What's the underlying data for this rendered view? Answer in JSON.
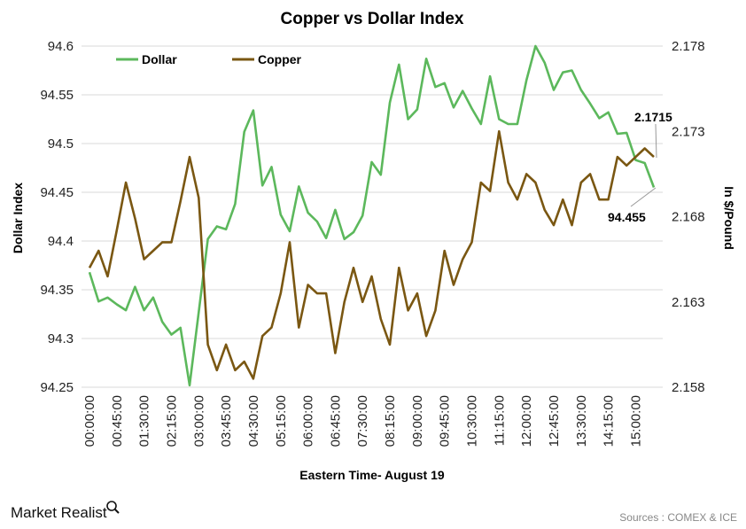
{
  "chart_data": {
    "type": "line",
    "title": "Copper vs Dollar Index",
    "xlabel": "Eastern Time- August 19",
    "ylabel_left": "Dollar Index",
    "ylabel_right": "In $/Pound",
    "ylim_left": [
      94.25,
      94.6
    ],
    "ylim_right": [
      2.158,
      2.178
    ],
    "yticks_left": [
      "94.25",
      "94.3",
      "94.35",
      "94.4",
      "94.45",
      "94.5",
      "94.55",
      "94.6"
    ],
    "yticks_right": [
      "2.158",
      "2.163",
      "2.168",
      "2.173",
      "2.178"
    ],
    "grid": true,
    "legend_position": "top-left",
    "x": [
      "00:00:00",
      "00:15:00",
      "00:30:00",
      "00:45:00",
      "01:00:00",
      "01:15:00",
      "01:30:00",
      "01:45:00",
      "02:00:00",
      "02:15:00",
      "02:30:00",
      "02:45:00",
      "03:00:00",
      "03:15:00",
      "03:30:00",
      "03:45:00",
      "04:00:00",
      "04:15:00",
      "04:30:00",
      "04:45:00",
      "05:00:00",
      "05:15:00",
      "05:30:00",
      "05:45:00",
      "06:00:00",
      "06:15:00",
      "06:30:00",
      "06:45:00",
      "07:00:00",
      "07:15:00",
      "07:30:00",
      "07:45:00",
      "08:00:00",
      "08:15:00",
      "08:30:00",
      "08:45:00",
      "09:00:00",
      "09:15:00",
      "09:30:00",
      "09:45:00",
      "10:00:00",
      "10:15:00",
      "10:30:00",
      "10:45:00",
      "11:00:00",
      "11:15:00",
      "11:30:00",
      "11:45:00",
      "12:00:00",
      "12:15:00",
      "12:30:00",
      "12:45:00",
      "13:00:00",
      "13:15:00",
      "13:30:00",
      "13:45:00",
      "14:00:00",
      "14:15:00",
      "14:30:00",
      "14:45:00",
      "15:00:00",
      "15:15:00",
      "15:30:00"
    ],
    "xticks": [
      "00:00:00",
      "00:45:00",
      "01:30:00",
      "02:15:00",
      "03:00:00",
      "03:45:00",
      "04:30:00",
      "05:15:00",
      "06:00:00",
      "06:45:00",
      "07:30:00",
      "08:15:00",
      "09:00:00",
      "09:45:00",
      "10:30:00",
      "11:15:00",
      "12:00:00",
      "12:45:00",
      "13:30:00",
      "14:15:00",
      "15:00:00"
    ],
    "series": [
      {
        "name": "Dollar",
        "axis": "left",
        "color": "#5cb85c",
        "values": [
          94.368,
          94.338,
          94.342,
          94.335,
          94.329,
          94.353,
          94.329,
          94.342,
          94.317,
          94.304,
          94.311,
          94.252,
          94.327,
          94.402,
          94.415,
          94.412,
          94.438,
          94.512,
          94.534,
          94.457,
          94.476,
          94.427,
          94.41,
          94.456,
          94.429,
          94.42,
          94.403,
          94.432,
          94.402,
          94.409,
          94.426,
          94.481,
          94.468,
          94.542,
          94.581,
          94.525,
          94.535,
          94.587,
          94.558,
          94.562,
          94.537,
          94.554,
          94.536,
          94.52,
          94.569,
          94.525,
          94.52,
          94.52,
          94.565,
          94.6,
          94.583,
          94.555,
          94.573,
          94.575,
          94.555,
          94.541,
          94.526,
          94.532,
          94.51,
          94.511,
          94.483,
          94.48,
          94.455
        ]
      },
      {
        "name": "Copper",
        "axis": "right",
        "color": "#7a5712",
        "values": [
          2.165,
          2.166,
          2.1645,
          2.1672,
          2.17,
          2.1679,
          2.1655,
          2.166,
          2.1665,
          2.1665,
          2.1689,
          2.1715,
          2.1691,
          2.1605,
          2.159,
          2.1605,
          2.159,
          2.1595,
          2.1585,
          2.161,
          2.1615,
          2.1635,
          2.1665,
          2.1615,
          2.164,
          2.1635,
          2.1635,
          2.16,
          2.163,
          2.165,
          2.163,
          2.1645,
          2.162,
          2.1605,
          2.165,
          2.1625,
          2.1635,
          2.161,
          2.1625,
          2.166,
          2.164,
          2.1655,
          2.1665,
          2.17,
          2.1695,
          2.173,
          2.17,
          2.169,
          2.1705,
          2.17,
          2.1684,
          2.1675,
          2.169,
          2.1675,
          2.17,
          2.1705,
          2.169,
          2.169,
          2.1715,
          2.171,
          2.1715,
          2.172,
          2.1715
        ]
      }
    ],
    "annotations": {
      "copper_last": "2.1715",
      "dollar_last": "94.455"
    }
  },
  "footer": {
    "brand": "Market Realist",
    "source": "Sources : COMEX  & ICE"
  }
}
